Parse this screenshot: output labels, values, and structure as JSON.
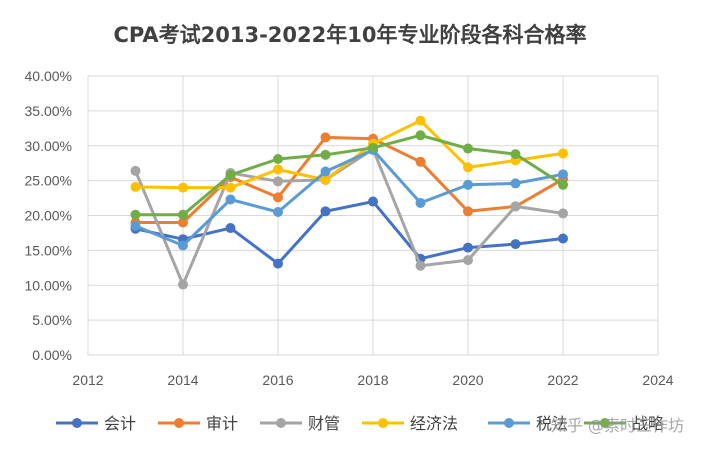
{
  "chart_data": {
    "type": "line",
    "title": "CPA考试2013-2022年10年专业阶段各科合格率",
    "xlabel": "",
    "ylabel": "",
    "xlim": [
      2012,
      2024
    ],
    "xticks": [
      2012,
      2014,
      2016,
      2018,
      2020,
      2022,
      2024
    ],
    "ylim": [
      0,
      0.4
    ],
    "yticks": [
      0,
      0.05,
      0.1,
      0.15,
      0.2,
      0.25,
      0.3,
      0.35,
      0.4
    ],
    "ytick_labels": [
      "0.00%",
      "5.00%",
      "10.00%",
      "15.00%",
      "20.00%",
      "25.00%",
      "30.00%",
      "35.00%",
      "40.00%"
    ],
    "grid": true,
    "legend_position": "bottom",
    "x": [
      2013,
      2014,
      2015,
      2016,
      2017,
      2018,
      2019,
      2020,
      2021,
      2022
    ],
    "series": [
      {
        "name": "会计",
        "color": "#4472c4",
        "values": [
          0.181,
          0.166,
          0.182,
          0.131,
          0.206,
          0.22,
          0.138,
          0.154,
          0.159,
          0.167
        ]
      },
      {
        "name": "审计",
        "color": "#ed7d31",
        "values": [
          0.19,
          0.19,
          0.255,
          0.226,
          0.312,
          0.31,
          0.277,
          0.206,
          0.213,
          0.252
        ]
      },
      {
        "name": "财管",
        "color": "#a5a5a5",
        "values": [
          0.264,
          0.101,
          0.261,
          0.249,
          0.251,
          0.295,
          0.128,
          0.136,
          0.213,
          0.203
        ]
      },
      {
        "name": "经济法",
        "color": "#ffc000",
        "values": [
          0.241,
          0.24,
          0.24,
          0.266,
          0.251,
          0.303,
          0.336,
          0.269,
          0.279,
          0.289
        ]
      },
      {
        "name": "税法",
        "color": "#5b9bd5",
        "values": [
          0.185,
          0.157,
          0.223,
          0.205,
          0.263,
          0.294,
          0.218,
          0.244,
          0.246,
          0.259
        ]
      },
      {
        "name": "战略",
        "color": "#70ad47",
        "values": [
          0.201,
          0.201,
          0.258,
          0.281,
          0.287,
          0.297,
          0.315,
          0.296,
          0.288,
          0.244
        ]
      }
    ]
  },
  "watermark": "知乎 @索时三作坊"
}
